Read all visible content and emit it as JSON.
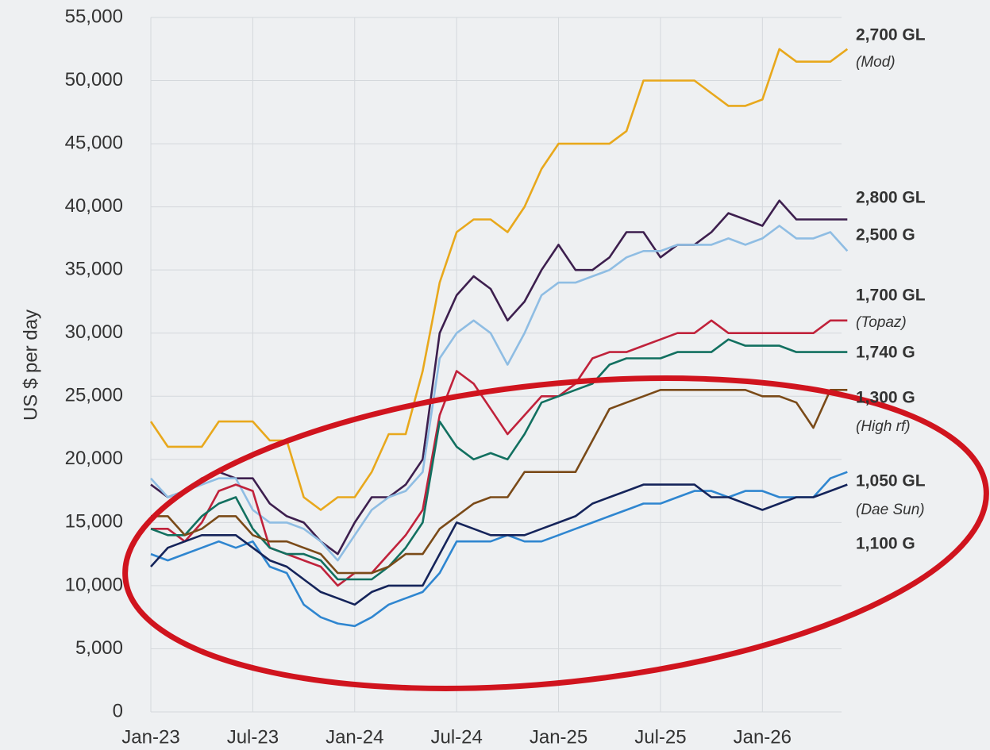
{
  "chart_data": {
    "type": "line",
    "ylabel": "US $ per day",
    "x": [
      0,
      1,
      2,
      3,
      4,
      5,
      6,
      7,
      8,
      9,
      10,
      11,
      12,
      13,
      14,
      15,
      16,
      17,
      18,
      19,
      20,
      21,
      22,
      23,
      24,
      25,
      26,
      27,
      28,
      29,
      30,
      31,
      32,
      33,
      34,
      35,
      36,
      37,
      38,
      39,
      40,
      41
    ],
    "xlim": [
      0,
      41.5
    ],
    "xticks": [
      {
        "value": 0,
        "label": "Jan-23"
      },
      {
        "value": 6,
        "label": "Jul-23"
      },
      {
        "value": 12,
        "label": "Jan-24"
      },
      {
        "value": 18,
        "label": "Jul-24"
      },
      {
        "value": 24,
        "label": "Jan-25"
      },
      {
        "value": 30,
        "label": "Jul-25"
      },
      {
        "value": 36,
        "label": "Jan-26"
      }
    ],
    "ylim": [
      0,
      55000
    ],
    "yticks": [
      0,
      {
        "value": 5000,
        "label": "5,000"
      },
      {
        "value": 10000,
        "label": "10,000"
      },
      {
        "value": 15000,
        "label": "15,000"
      },
      {
        "value": 20000,
        "label": "20,000"
      },
      {
        "value": 25000,
        "label": "25,000"
      },
      {
        "value": 30000,
        "label": "30,000"
      },
      {
        "value": 35000,
        "label": "35,000"
      },
      {
        "value": 40000,
        "label": "40,000"
      },
      {
        "value": 45000,
        "label": "45,000"
      },
      {
        "value": 50000,
        "label": "50,000"
      },
      {
        "value": 55000,
        "label": "55,000"
      }
    ],
    "grid": true,
    "series": [
      {
        "name": "2,700 GL",
        "note": "(Mod)",
        "color": "#e8a81c",
        "values": [
          23000,
          21000,
          21000,
          21000,
          23000,
          23000,
          23000,
          21500,
          21500,
          17000,
          16000,
          17000,
          17000,
          19000,
          22000,
          22000,
          27000,
          34000,
          38000,
          39000,
          39000,
          38000,
          40000,
          43000,
          45000,
          45000,
          45000,
          45000,
          46000,
          50000,
          50000,
          50000,
          50000,
          49000,
          48000,
          48000,
          48500,
          52500,
          51500,
          51500,
          51500,
          52500
        ]
      },
      {
        "name": "2,800 GL",
        "color": "#3d1f4e",
        "values": [
          18000,
          17000,
          17500,
          18500,
          19000,
          18500,
          18500,
          16500,
          15500,
          15000,
          13500,
          12500,
          15000,
          17000,
          17000,
          18000,
          20000,
          30000,
          33000,
          34500,
          33500,
          31000,
          32500,
          35000,
          37000,
          35000,
          35000,
          36000,
          38000,
          38000,
          36000,
          37000,
          37000,
          38000,
          39500,
          39000,
          38500,
          40500,
          39000,
          39000,
          39000,
          39000
        ]
      },
      {
        "name": "2,500 G",
        "color": "#8fbde3",
        "values": [
          18500,
          17000,
          17500,
          18000,
          18500,
          18500,
          16000,
          15000,
          15000,
          14500,
          13500,
          12000,
          14000,
          16000,
          17000,
          17500,
          19000,
          28000,
          30000,
          31000,
          30000,
          27500,
          30000,
          33000,
          34000,
          34000,
          34500,
          35000,
          36000,
          36500,
          36500,
          37000,
          37000,
          37000,
          37500,
          37000,
          37500,
          38500,
          37500,
          37500,
          38000,
          36500
        ]
      },
      {
        "name": "1,700 GL",
        "note": "(Topaz)",
        "color": "#c0223b",
        "values": [
          14500,
          14500,
          13500,
          15000,
          17500,
          18000,
          17500,
          13000,
          12500,
          12000,
          11500,
          10000,
          11000,
          11000,
          12500,
          14000,
          16000,
          23500,
          27000,
          26000,
          24000,
          22000,
          23500,
          25000,
          25000,
          26000,
          28000,
          28500,
          28500,
          29000,
          29500,
          30000,
          30000,
          31000,
          30000,
          30000,
          30000,
          30000,
          30000,
          30000,
          31000,
          31000
        ]
      },
      {
        "name": "1,740 G",
        "color": "#127060",
        "values": [
          14500,
          14000,
          14000,
          15500,
          16500,
          17000,
          14500,
          13000,
          12500,
          12500,
          12000,
          10500,
          10500,
          10500,
          11500,
          13000,
          15000,
          23000,
          21000,
          20000,
          20500,
          20000,
          22000,
          24500,
          25000,
          25500,
          26000,
          27500,
          28000,
          28000,
          28000,
          28500,
          28500,
          28500,
          29500,
          29000,
          29000,
          29000,
          28500,
          28500,
          28500,
          28500
        ]
      },
      {
        "name": "1,300 G",
        "note": "(High rf)",
        "color": "#7a4a18",
        "values": [
          15500,
          15500,
          14000,
          14500,
          15500,
          15500,
          14000,
          13500,
          13500,
          13000,
          12500,
          11000,
          11000,
          11000,
          11500,
          12500,
          12500,
          14500,
          15500,
          16500,
          17000,
          17000,
          19000,
          19000,
          19000,
          19000,
          21500,
          24000,
          24500,
          25000,
          25500,
          25500,
          25500,
          25500,
          25500,
          25500,
          25000,
          25000,
          24500,
          22500,
          25500,
          25500
        ]
      },
      {
        "name": "1,050 GL",
        "note": "(Dae Sun)",
        "color": "#2f86d0",
        "values": [
          12500,
          12000,
          12500,
          13000,
          13500,
          13000,
          13500,
          11500,
          11000,
          8500,
          7500,
          7000,
          6800,
          7500,
          8500,
          9000,
          9500,
          11000,
          13500,
          13500,
          13500,
          14000,
          13500,
          13500,
          14000,
          14500,
          15000,
          15500,
          16000,
          16500,
          16500,
          17000,
          17500,
          17500,
          17000,
          17500,
          17500,
          17000,
          17000,
          17000,
          18500,
          19000
        ]
      },
      {
        "name": "1,100 G",
        "color": "#15245a",
        "values": [
          11500,
          13000,
          13500,
          14000,
          14000,
          14000,
          13000,
          12000,
          11500,
          10500,
          9500,
          9000,
          8500,
          9500,
          10000,
          10000,
          10000,
          12500,
          15000,
          14500,
          14000,
          14000,
          14000,
          14500,
          15000,
          15500,
          16500,
          17000,
          17500,
          18000,
          18000,
          18000,
          18000,
          17000,
          17000,
          16500,
          16000,
          16500,
          17000,
          17000,
          17500,
          18000
        ]
      }
    ]
  }
}
